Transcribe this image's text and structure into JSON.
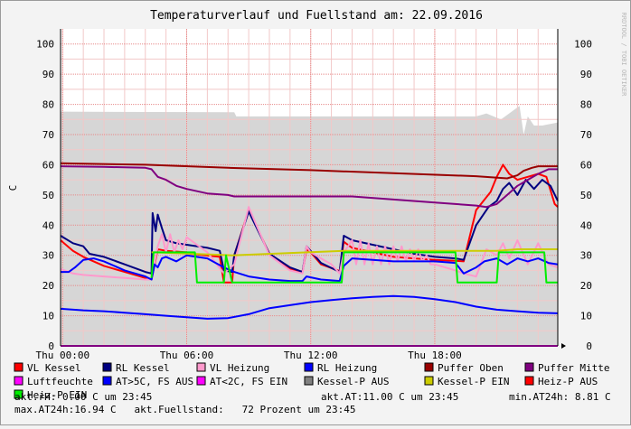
{
  "chart_data": {
    "type": "line",
    "title": "Temperaturverlauf und Fuellstand am: 22.09.2016",
    "ylabel": "C",
    "side_label": "RRDTOOL / TOBI OETIKER",
    "ylim": [
      0,
      105
    ],
    "yticks": [
      0,
      10,
      20,
      30,
      40,
      50,
      60,
      70,
      80,
      90,
      100
    ],
    "xlim": [
      -0.1,
      23.95
    ],
    "xticks": [
      {
        "hour": 0,
        "label": "Thu 00:00"
      },
      {
        "hour": 6,
        "label": "Thu 06:00"
      },
      {
        "hour": 12,
        "label": "Thu 12:00"
      },
      {
        "hour": 18,
        "label": "Thu 18:00"
      }
    ],
    "grid": true,
    "area": {
      "name": "akt.Fuellstand",
      "color": "#d6d6d6",
      "x": [
        -0.1,
        8.3,
        8.4,
        11.5,
        20.0,
        20.5,
        21.2,
        22.1,
        22.3,
        22.5,
        22.8,
        23.2,
        23.95
      ],
      "y": [
        77.6,
        77.4,
        76.0,
        76.0,
        76.0,
        77.0,
        75.0,
        79.5,
        70.0,
        76.0,
        73.0,
        73.0,
        74.0
      ]
    },
    "series": [
      {
        "name": "VL Kessel",
        "color": "#ff0000",
        "x": [
          -0.1,
          0.5,
          1.0,
          2.0,
          3.0,
          4.0,
          4.3,
          4.6,
          5.0,
          6.0,
          6.2,
          7.6,
          7.8,
          8.2,
          8.3,
          9.0,
          10.0,
          11.0,
          11.6,
          11.8,
          12.0,
          12.5,
          13.4,
          13.6,
          14.0,
          15.0,
          16.0,
          17.0,
          18.0,
          19.0,
          19.4,
          20.0,
          20.7,
          21.0,
          21.3,
          21.6,
          22.0,
          22.5,
          23.0,
          23.4,
          23.8,
          23.95
        ],
        "y": [
          35,
          31.5,
          29.5,
          26.5,
          24.5,
          22.5,
          22,
          32,
          31.5,
          31,
          30.5,
          29.5,
          21,
          21,
          30,
          45,
          30.5,
          25.5,
          24.5,
          32,
          31,
          27,
          24.8,
          34.5,
          32.5,
          31,
          29.5,
          29,
          28.5,
          28.2,
          28,
          45,
          51,
          56,
          60,
          57,
          55,
          56,
          57,
          56,
          47,
          46
        ]
      },
      {
        "name": "RL Kessel",
        "color": "#000080",
        "x": [
          -0.1,
          0.5,
          1.0,
          1.3,
          2.0,
          3.0,
          4.0,
          4.3,
          4.35,
          4.5,
          4.6,
          4.8,
          5.0,
          5.5,
          6.0,
          7.0,
          7.6,
          7.8,
          8.2,
          8.3,
          9.0,
          10.0,
          11.0,
          11.6,
          11.8,
          12.5,
          13.4,
          13.6,
          14.0,
          15.0,
          16.0,
          17.0,
          18.0,
          19.0,
          19.4,
          20.0,
          20.4,
          20.6,
          21.0,
          21.3,
          21.6,
          22.0,
          22.4,
          22.8,
          23.2,
          23.6,
          23.95
        ],
        "y": [
          36.5,
          34,
          33,
          30.5,
          29.5,
          27,
          24.5,
          24,
          44,
          38,
          43.5,
          39,
          35,
          34,
          33.5,
          32.5,
          31.5,
          25,
          24.5,
          30,
          44.5,
          30.5,
          26,
          24.5,
          33,
          27.5,
          24.5,
          36.5,
          35,
          33.5,
          32,
          30.5,
          29.5,
          29,
          28.5,
          40,
          44,
          46,
          48,
          52,
          54,
          50,
          55,
          52,
          55,
          53,
          48
        ]
      },
      {
        "name": "VL Heizung",
        "color": "#ff99cc",
        "x": [
          -0.1,
          0.5,
          1.0,
          2.0,
          3.0,
          4.0,
          4.3,
          4.6,
          4.8,
          5.0,
          5.2,
          5.4,
          5.6,
          5.8,
          6.0,
          7.0,
          7.8,
          8.3,
          9.0,
          10.0,
          11.0,
          11.6,
          11.8,
          12.0,
          12.5,
          13.0,
          13.4,
          13.6,
          14.0,
          14.2,
          14.4,
          14.6,
          14.8,
          15.0,
          15.2,
          15.4,
          15.6,
          15.8,
          16.0,
          16.2,
          16.4,
          16.6,
          16.8,
          17.0,
          17.2,
          17.4,
          17.6,
          17.8,
          18.0,
          18.5,
          19.0,
          19.4,
          20.0,
          20.5,
          21.0,
          21.3,
          21.6,
          22.0,
          22.5,
          23.0,
          23.5,
          23.95
        ],
        "y": [
          25.5,
          24,
          23.5,
          23,
          22.5,
          22,
          22,
          33,
          37,
          31,
          37,
          31,
          35,
          32,
          36,
          31,
          24,
          27,
          46,
          30,
          25,
          24,
          33,
          31,
          29,
          27,
          24,
          31,
          35,
          27,
          35,
          27,
          34,
          27,
          33,
          27,
          33,
          27,
          33,
          28,
          33,
          28,
          32,
          28,
          32,
          28,
          30,
          27,
          27,
          26,
          25,
          24,
          23,
          32,
          30,
          34,
          29,
          35,
          27,
          34,
          27,
          26
        ]
      },
      {
        "name": "RL Heizung",
        "color": "#0000ff",
        "x": [
          -0.1,
          0.3,
          0.6,
          1.0,
          1.5,
          2.0,
          3.0,
          4.0,
          4.3,
          4.45,
          4.6,
          4.8,
          5.0,
          5.5,
          6.0,
          7.0,
          7.8,
          8.3,
          9.0,
          10.0,
          11.0,
          11.6,
          11.8,
          12.5,
          13.4,
          13.6,
          14.0,
          15.0,
          16.0,
          17.0,
          18.0,
          19.0,
          19.4,
          20.0,
          20.4,
          21.0,
          21.5,
          22.0,
          22.5,
          23.0,
          23.5,
          23.95
        ],
        "y": [
          24.5,
          24.5,
          26,
          28.5,
          29,
          28,
          25,
          23,
          22,
          27,
          26,
          29,
          29.5,
          28,
          30,
          29,
          26,
          24.5,
          23,
          22,
          21.5,
          21.5,
          23,
          22,
          21.5,
          26.5,
          29,
          28.5,
          28,
          28,
          28,
          27.5,
          24,
          26,
          28,
          29,
          27,
          29,
          28,
          29,
          27.5,
          27
        ]
      },
      {
        "name": "Puffer Oben",
        "color": "#990000",
        "x": [
          -0.1,
          4.0,
          8.0,
          12.0,
          16.0,
          20.0,
          21.5,
          22.0,
          22.3,
          22.7,
          23.0,
          23.95
        ],
        "y": [
          60.5,
          60,
          59,
          58.2,
          57.2,
          56.2,
          55.5,
          56.5,
          58,
          59,
          59.5,
          59.5
        ]
      },
      {
        "name": "Puffer Mitte",
        "color": "#800080",
        "x": [
          -0.1,
          2.0,
          4.0,
          4.3,
          4.6,
          5.0,
          5.5,
          6.0,
          7.0,
          8.0,
          8.3,
          10.0,
          14.0,
          16.0,
          18.0,
          20.0,
          20.5,
          21.0,
          21.5,
          22.0,
          22.5,
          23.0,
          23.5,
          23.95
        ],
        "y": [
          59.5,
          59.3,
          59,
          58.5,
          56,
          55,
          53,
          52,
          50.5,
          50,
          49.5,
          49.5,
          49.5,
          48.5,
          47.5,
          46.5,
          46,
          47,
          50,
          53,
          55,
          57,
          58.5,
          58.5
        ]
      },
      {
        "name": "Luftfeuchte",
        "color": "#ff00ff",
        "x": [
          -0.1,
          23.95
        ],
        "y": [
          0,
          0
        ]
      },
      {
        "name": "AT>5C, FS AUS",
        "color": "#0000ff",
        "x": [
          -0.1,
          1.0,
          2.0,
          3.0,
          4.0,
          5.0,
          6.0,
          7.0,
          8.0,
          9.0,
          10.0,
          11.0,
          12.0,
          13.0,
          14.0,
          15.0,
          16.0,
          17.0,
          18.0,
          19.0,
          20.0,
          21.0,
          22.0,
          23.0,
          23.95
        ],
        "y": [
          12.3,
          11.8,
          11.5,
          11.0,
          10.5,
          10.0,
          9.5,
          9.0,
          9.2,
          10.5,
          12.5,
          13.5,
          14.5,
          15.2,
          15.8,
          16.2,
          16.5,
          16.2,
          15.5,
          14.5,
          13.0,
          12.0,
          11.5,
          11.0,
          10.8
        ]
      },
      {
        "name": "AT<2C, FS EIN",
        "color": "#ff00ff",
        "x": [],
        "y": []
      },
      {
        "name": "Kessel-P AUS",
        "color": "#808080",
        "x": [],
        "y": []
      },
      {
        "name": "Kessel-P EIN",
        "color": "#cccc00",
        "x": [
          4.3,
          4.4,
          8.2,
          13.6,
          13.7,
          19.0,
          21.0,
          22.0,
          22.5,
          23.95
        ],
        "y": [
          31,
          31,
          30,
          31.5,
          31.5,
          31.5,
          31.5,
          32,
          32,
          32
        ]
      },
      {
        "name": "Heiz-P AUS",
        "color": "#ff0000",
        "x": [],
        "y": []
      },
      {
        "name": "Heiz-P EIN",
        "color": "#00ee00",
        "x": [
          4.3,
          4.4,
          6.4,
          6.5,
          7.8,
          7.9,
          8.2,
          13.5,
          13.6,
          19.0,
          19.1,
          21.0,
          21.1,
          23.3,
          23.4,
          23.95
        ],
        "y": [
          22.5,
          31,
          31,
          21,
          21,
          30,
          21,
          21,
          31,
          31,
          21,
          21,
          31,
          31,
          21,
          21
        ]
      }
    ]
  },
  "legend": {
    "items": [
      {
        "name": "VL Kessel",
        "color": "#ff0000"
      },
      {
        "name": "RL Kessel",
        "color": "#000080"
      },
      {
        "name": "VL Heizung",
        "color": "#ff99cc"
      },
      {
        "name": "RL Heizung",
        "color": "#0000ff"
      },
      {
        "name": "Puffer Oben",
        "color": "#990000"
      },
      {
        "name": "Puffer Mitte",
        "color": "#800080"
      },
      {
        "name": "Luftfeuchte",
        "color": "#ff00ff"
      },
      {
        "name": "AT>5C, FS AUS",
        "color": "#0000ff"
      },
      {
        "name": "AT<2C, FS EIN",
        "color": "#ff00ff"
      },
      {
        "name": "Kessel-P AUS",
        "color": "#808080"
      },
      {
        "name": "Kessel-P EIN",
        "color": "#cccc00"
      },
      {
        "name": "Heiz-P AUS",
        "color": "#ff0000"
      },
      {
        "name": "Heiz-P EIN",
        "color": "#00ee00"
      }
    ],
    "stats_line1": [
      "akt.rH: 0.00 C um 23:45",
      "akt.AT:11.00 C um 23:45",
      "min.AT24h: 8.81 C"
    ],
    "stats_line2": "max.AT24h:16.94 C   akt.Fuellstand:   72 Prozent um 23:45"
  }
}
